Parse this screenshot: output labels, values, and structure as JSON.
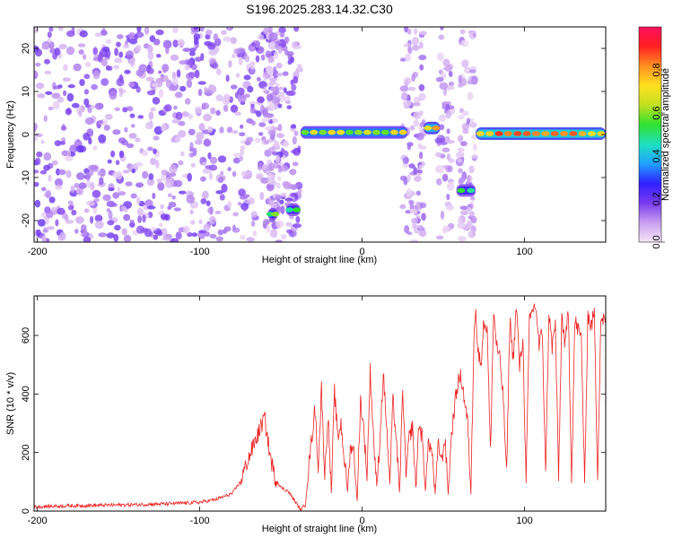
{
  "title": "S196.2025.283.14.32.C30",
  "chart_data": [
    {
      "type": "heatmap",
      "xlabel": "Height of straight line (km)",
      "ylabel": "Frequency (Hz)",
      "xlim": [
        -202,
        150
      ],
      "ylim": [
        -25,
        25
      ],
      "xticks": [
        -200,
        -100,
        0,
        100
      ],
      "yticks": [
        -20,
        -10,
        0,
        10,
        20
      ],
      "grid": false,
      "colorbar": {
        "label": "Normalized spectral amplitude",
        "range": [
          0,
          1
        ],
        "ticks": [
          0.0,
          0.2,
          0.4,
          0.6,
          0.8
        ],
        "tick_labels": [
          "0.0",
          "0.2",
          "0.4",
          "0.6",
          "0.8"
        ],
        "colormap": [
          "#f6e6f6",
          "#c89ef0",
          "#7a3bf0",
          "#3020ff",
          "#20a0ff",
          "#20e0c0",
          "#30e030",
          "#c0e020",
          "#ffe020",
          "#ff9020",
          "#ff2020",
          "#ff1060"
        ]
      },
      "features": [
        {
          "kind": "noise",
          "x_range": [
            -202,
            -38
          ],
          "y_range": [
            -25,
            25
          ],
          "amplitude": 0.18
        },
        {
          "kind": "noise_band",
          "x_range": [
            -60,
            -50
          ],
          "y_range": [
            -25,
            25
          ],
          "amplitude": 0.12
        },
        {
          "kind": "band",
          "x_range": [
            25,
            38
          ],
          "y_range": [
            -25,
            25
          ],
          "amplitude": 0.15
        },
        {
          "kind": "band",
          "x_range": [
            47,
            55
          ],
          "y_range": [
            -25,
            25
          ],
          "amplitude": 0.14
        },
        {
          "kind": "band",
          "x_range": [
            60,
            70
          ],
          "y_range": [
            -25,
            25
          ],
          "amplitude": 0.12
        },
        {
          "kind": "blob",
          "x_range": [
            -58,
            -52
          ],
          "y": -18.5,
          "amplitude": 0.6
        },
        {
          "kind": "blob",
          "x_range": [
            -47,
            -38
          ],
          "y": -17.5,
          "amplitude": 0.55
        },
        {
          "kind": "line",
          "x_range": [
            -38,
            28
          ],
          "y": 0.5,
          "amplitude": 0.75
        },
        {
          "kind": "line",
          "x_range": [
            38,
            48
          ],
          "y": 1.5,
          "amplitude": 0.85
        },
        {
          "kind": "blob",
          "x_range": [
            58,
            70
          ],
          "y": -13,
          "amplitude": 0.55
        },
        {
          "kind": "line",
          "x_range": [
            70,
            150
          ],
          "y": 0.2,
          "amplitude": 0.95
        }
      ]
    },
    {
      "type": "line",
      "xlabel": "Height of straight line (km)",
      "ylabel": "SNR (10 * v/v)",
      "xlim": [
        -202,
        150
      ],
      "ylim": [
        0,
        735
      ],
      "xticks": [
        -200,
        -100,
        0,
        100
      ],
      "yticks": [
        0,
        200,
        400,
        600
      ],
      "grid": false,
      "color": "#ee2222",
      "x": [
        -202,
        -180,
        -160,
        -140,
        -120,
        -100,
        -90,
        -80,
        -75,
        -70,
        -65,
        -60,
        -57,
        -54,
        -50,
        -46,
        -42,
        -38,
        -35,
        -32,
        -29,
        -27,
        -25,
        -23,
        -21,
        -19,
        -17,
        -15,
        -13,
        -11,
        -9,
        -7,
        -5,
        -3,
        -1,
        1,
        3,
        5,
        7,
        9,
        11,
        13,
        15,
        17,
        19,
        21,
        23,
        25,
        27,
        29,
        31,
        33,
        35,
        37,
        39,
        41,
        43,
        45,
        47,
        49,
        51,
        53,
        55,
        57,
        59,
        61,
        63,
        65,
        67,
        69,
        70,
        71,
        73,
        75,
        77,
        79,
        81,
        83,
        85,
        87,
        89,
        91,
        93,
        95,
        97,
        99,
        101,
        103,
        105,
        107,
        109,
        111,
        113,
        115,
        117,
        119,
        121,
        123,
        125,
        127,
        129,
        131,
        133,
        135,
        137,
        139,
        141,
        143,
        145,
        147,
        150
      ],
      "y": [
        15,
        18,
        20,
        22,
        25,
        30,
        40,
        60,
        100,
        180,
        250,
        320,
        200,
        120,
        80,
        70,
        40,
        5,
        20,
        200,
        350,
        150,
        420,
        120,
        330,
        60,
        410,
        250,
        300,
        180,
        70,
        230,
        200,
        30,
        380,
        280,
        120,
        480,
        260,
        80,
        250,
        470,
        300,
        90,
        380,
        250,
        60,
        420,
        120,
        250,
        290,
        80,
        300,
        250,
        70,
        240,
        200,
        60,
        230,
        170,
        250,
        60,
        260,
        360,
        440,
        460,
        380,
        300,
        60,
        640,
        700,
        560,
        500,
        650,
        620,
        200,
        680,
        560,
        510,
        380,
        120,
        660,
        520,
        700,
        490,
        590,
        100,
        640,
        690,
        700,
        560,
        620,
        120,
        680,
        560,
        640,
        110,
        670,
        560,
        690,
        100,
        650,
        620,
        590,
        90,
        670,
        630,
        680,
        120,
        660,
        650
      ]
    }
  ]
}
